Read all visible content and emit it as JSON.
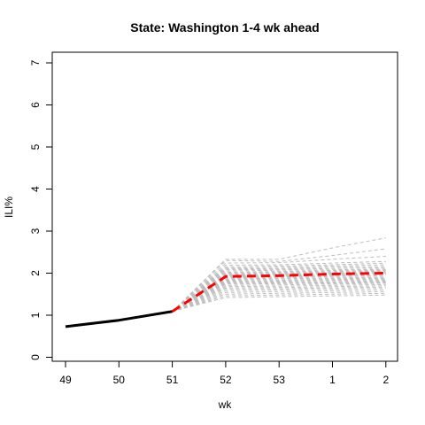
{
  "chart_data": {
    "type": "line",
    "title": "State: Washington 1-4 wk ahead",
    "xlabel": "wk",
    "ylabel": "ILI%",
    "categories": [
      "49",
      "50",
      "51",
      "52",
      "53",
      "1",
      "2"
    ],
    "ylim": [
      0,
      7
    ],
    "yticks": [
      0,
      1,
      2,
      3,
      4,
      5,
      6,
      7
    ],
    "grid": false,
    "legend": "none",
    "series": [
      {
        "role": "observed",
        "color": "#000000",
        "style": "solid",
        "points": [
          {
            "x": "49",
            "y": 0.73
          },
          {
            "x": "50",
            "y": 0.88
          },
          {
            "x": "51",
            "y": 1.09
          }
        ]
      },
      {
        "role": "forecast-mean",
        "color": "#ff0000",
        "style": "dashed",
        "points": [
          {
            "x": "51",
            "y": 1.09
          },
          {
            "x": "52",
            "y": 1.92
          },
          {
            "x": "53",
            "y": 1.94
          },
          {
            "x": "1",
            "y": 1.98
          },
          {
            "x": "2",
            "y": 2.0
          }
        ]
      }
    ],
    "forecast_ensemble": {
      "color": "#bebebe",
      "style": "dashed",
      "start": {
        "x": "51",
        "y": 1.09
      },
      "x": [
        "52",
        "53",
        "1",
        "2"
      ],
      "members": [
        [
          2.33,
          2.33,
          2.6,
          2.84
        ],
        [
          2.3,
          2.28,
          2.42,
          2.58
        ],
        [
          2.24,
          2.25,
          2.33,
          2.4
        ],
        [
          2.19,
          2.2,
          2.24,
          2.28
        ],
        [
          2.15,
          2.17,
          2.2,
          2.24
        ],
        [
          2.12,
          2.14,
          2.17,
          2.2
        ],
        [
          2.1,
          2.11,
          2.14,
          2.16
        ],
        [
          2.08,
          2.09,
          2.11,
          2.13
        ],
        [
          2.05,
          2.07,
          2.08,
          2.1
        ],
        [
          2.02,
          2.04,
          2.06,
          2.08
        ],
        [
          2.0,
          2.02,
          2.04,
          2.06
        ],
        [
          1.98,
          2.0,
          2.02,
          2.04
        ],
        [
          1.96,
          1.98,
          2.0,
          2.02
        ],
        [
          1.94,
          1.96,
          1.98,
          2.0
        ],
        [
          1.92,
          1.94,
          1.96,
          1.98
        ],
        [
          1.9,
          1.92,
          1.94,
          1.95
        ],
        [
          1.88,
          1.9,
          1.92,
          1.93
        ],
        [
          1.86,
          1.88,
          1.89,
          1.9
        ],
        [
          1.84,
          1.86,
          1.87,
          1.88
        ],
        [
          1.82,
          1.83,
          1.85,
          1.86
        ],
        [
          1.8,
          1.81,
          1.83,
          1.84
        ],
        [
          1.78,
          1.79,
          1.8,
          1.82
        ],
        [
          1.76,
          1.77,
          1.78,
          1.8
        ],
        [
          1.74,
          1.75,
          1.76,
          1.78
        ],
        [
          1.71,
          1.72,
          1.74,
          1.76
        ],
        [
          1.68,
          1.69,
          1.71,
          1.73
        ],
        [
          1.65,
          1.66,
          1.68,
          1.7
        ],
        [
          1.62,
          1.63,
          1.65,
          1.67
        ],
        [
          1.58,
          1.6,
          1.62,
          1.64
        ],
        [
          1.54,
          1.56,
          1.58,
          1.6
        ],
        [
          1.5,
          1.52,
          1.54,
          1.56
        ],
        [
          1.46,
          1.48,
          1.5,
          1.52
        ],
        [
          1.42,
          1.44,
          1.46,
          1.48
        ]
      ]
    }
  }
}
